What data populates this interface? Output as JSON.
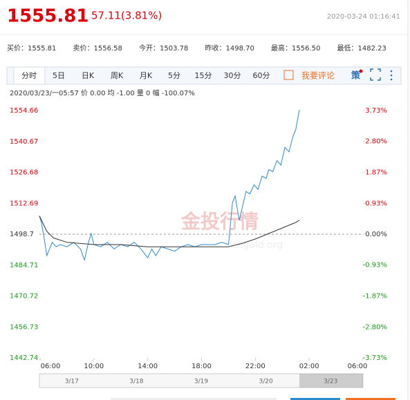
{
  "header": {
    "price": "1555.81",
    "change": "57.11(3.81%)",
    "time": "2020-03-24 01:16:41",
    "quotes": [
      "买价：1555.81",
      "卖价：1556.58",
      "今开：1503.78",
      "昨收：1498.70",
      "最高：1556.50",
      "最低：1482.23"
    ]
  },
  "tabs": [
    "分时",
    "5日",
    "日K",
    "周K",
    "月K",
    "5分",
    "15分",
    "30分",
    "60分"
  ],
  "comment": "我要评论",
  "strategy": "策",
  "info": "2020/03/23/一05:57  价 0.00  均 -1.00  量 0  幅 -100.07%",
  "watermark": [
    "金投行情",
    "cngold.org"
  ],
  "navigator": [
    "3/17",
    "3/18",
    "3/19",
    "3/20",
    "3/23"
  ],
  "chart_data": {
    "type": "line",
    "xlim": [
      -0.05,
      24
    ],
    "xticks": [
      {
        "value": 0,
        "label": "06:00"
      },
      {
        "value": 4,
        "label": "10:00"
      },
      {
        "value": 8,
        "label": "14:00"
      },
      {
        "value": 12,
        "label": "18:00"
      },
      {
        "value": 16,
        "label": "22:00"
      },
      {
        "value": 20,
        "label": "02:00"
      },
      {
        "value": 24,
        "label": "06:00"
      }
    ],
    "ylim": [
      1442.74,
      1554.66
    ],
    "yticks": [
      1442.74,
      1456.73,
      1470.72,
      1484.71,
      1498.7,
      1512.69,
      1526.68,
      1540.67,
      1554.66
    ],
    "y2lim": [
      -3.73,
      3.73
    ],
    "y2ticks": [
      {
        "value": -3.73,
        "label": "-3.73%"
      },
      {
        "value": -2.8,
        "label": "-2.80%"
      },
      {
        "value": -1.87,
        "label": "-1.87%"
      },
      {
        "value": -0.93,
        "label": "-0.93%"
      },
      {
        "value": 0,
        "label": "0.00%"
      },
      {
        "value": 0.93,
        "label": "0.93%"
      },
      {
        "value": 1.87,
        "label": "1.87%"
      },
      {
        "value": 2.8,
        "label": "2.80%"
      },
      {
        "value": 3.73,
        "label": "3.73%"
      }
    ],
    "reference_line": 1498.7,
    "up_color": "#e0000a",
    "down_color": "#1a9e1a",
    "series": [
      {
        "color": "#2a8bd0",
        "x": [
          -0.05,
          0.1,
          0.3,
          0.5,
          0.7,
          0.9,
          1.2,
          1.5,
          2,
          2.5,
          3,
          3.3,
          3.6,
          3.8,
          4,
          4.5,
          5,
          5.5,
          6,
          6.5,
          7,
          7.5,
          8,
          8.3,
          8.6,
          9,
          9.5,
          10,
          10.5,
          11,
          11.5,
          12,
          12.5,
          13,
          13.5,
          14,
          14.1,
          14.3,
          14.5,
          14.8,
          15,
          15.3,
          15.6,
          15.9,
          16.2,
          16.5,
          16.8,
          17,
          17.3,
          17.6,
          17.9,
          18.2,
          18.5,
          18.8,
          19,
          19.27
        ],
        "values": [
          1507,
          1504,
          1497,
          1489,
          1492,
          1495,
          1493,
          1494,
          1493,
          1495,
          1492,
          1487,
          1495,
          1499,
          1494,
          1493,
          1495,
          1492,
          1494,
          1493,
          1495,
          1492,
          1488,
          1492,
          1489,
          1493,
          1492,
          1491,
          1493,
          1494,
          1493,
          1494,
          1494,
          1494,
          1495,
          1494,
          1500,
          1513,
          1516,
          1505,
          1510,
          1518,
          1517,
          1521,
          1519,
          1525,
          1524,
          1528,
          1527,
          1532,
          1530,
          1538,
          1536,
          1543,
          1546,
          1555
        ]
      },
      {
        "color": "#333333",
        "x": [
          -0.05,
          0.5,
          1,
          2,
          4,
          6,
          8,
          10,
          12,
          14,
          15,
          16,
          17,
          18,
          19,
          19.27
        ],
        "values": [
          1507,
          1500,
          1497,
          1495,
          1494,
          1494,
          1493,
          1493,
          1493,
          1493,
          1494.5,
          1496.5,
          1499,
          1501.5,
          1504,
          1505
        ]
      }
    ]
  }
}
